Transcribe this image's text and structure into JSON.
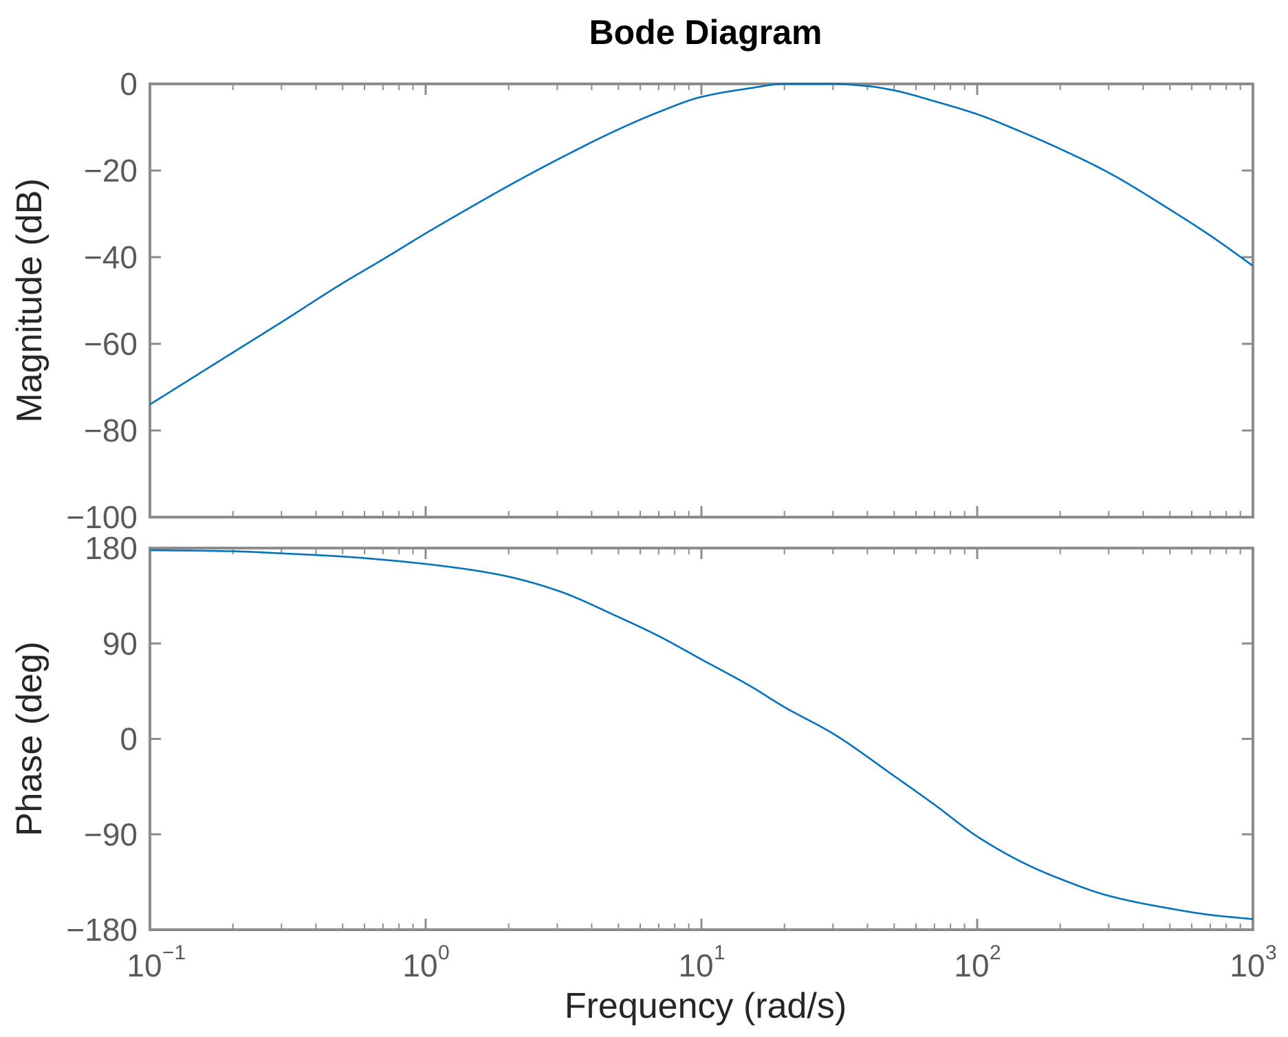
{
  "chart_data": {
    "type": "line",
    "title": "Bode Diagram",
    "xlabel": "Frequency  (rad/s)",
    "xscale": "log",
    "xlim": [
      0.1,
      1000
    ],
    "x_ticks": [
      {
        "base": "10",
        "exp": "−1",
        "value": 0.1
      },
      {
        "base": "10",
        "exp": "0",
        "value": 1
      },
      {
        "base": "10",
        "exp": "1",
        "value": 10
      },
      {
        "base": "10",
        "exp": "2",
        "value": 100
      },
      {
        "base": "10",
        "exp": "3",
        "value": 1000
      }
    ],
    "line_color": "#0072BD",
    "grid": false,
    "subplots": [
      {
        "name": "magnitude",
        "ylabel": "Magnitude (dB)",
        "ylim": [
          -100,
          0
        ],
        "y_ticks": [
          {
            "label": "0",
            "value": 0
          },
          {
            "label": "−20",
            "value": -20
          },
          {
            "label": "−40",
            "value": -40
          },
          {
            "label": "−60",
            "value": -60
          },
          {
            "label": "−80",
            "value": -80
          },
          {
            "label": "−100",
            "value": -100
          }
        ],
        "series": [
          {
            "x": [
              0.1,
              0.2,
              0.3,
              0.5,
              0.7,
              1,
              1.5,
              2,
              3,
              5,
              7,
              10,
              15,
              20,
              25,
              30,
              40,
              50,
              70,
              100,
              150,
              200,
              300,
              500,
              700,
              1000
            ],
            "values": [
              -74,
              -62,
              -55,
              -46,
              -40.5,
              -34.5,
              -28,
              -23.5,
              -17.5,
              -10.5,
              -6.5,
              -3,
              -1,
              0,
              0,
              0,
              -0.5,
              -1.5,
              -4,
              -7,
              -11.5,
              -15,
              -20.5,
              -29,
              -35,
              -42
            ]
          }
        ]
      },
      {
        "name": "phase",
        "ylabel": "Phase (deg)",
        "ylim": [
          -180,
          180
        ],
        "y_ticks": [
          {
            "label": "180",
            "value": 180
          },
          {
            "label": "90",
            "value": 90
          },
          {
            "label": "0",
            "value": 0
          },
          {
            "label": "−90",
            "value": -90
          },
          {
            "label": "−180",
            "value": -180
          }
        ],
        "series": [
          {
            "x": [
              0.1,
              0.2,
              0.3,
              0.5,
              0.7,
              1,
              1.5,
              2,
              3,
              5,
              7,
              10,
              15,
              20,
              30,
              50,
              70,
              100,
              150,
              200,
              300,
              500,
              700,
              1000
            ],
            "values": [
              178,
              177,
              175,
              172,
              169,
              165,
              159,
              153,
              140,
              115,
              97,
              75,
              50,
              30,
              5,
              -35,
              -62,
              -92,
              -118,
              -132,
              -148,
              -160,
              -166,
              -170
            ]
          }
        ]
      }
    ]
  }
}
